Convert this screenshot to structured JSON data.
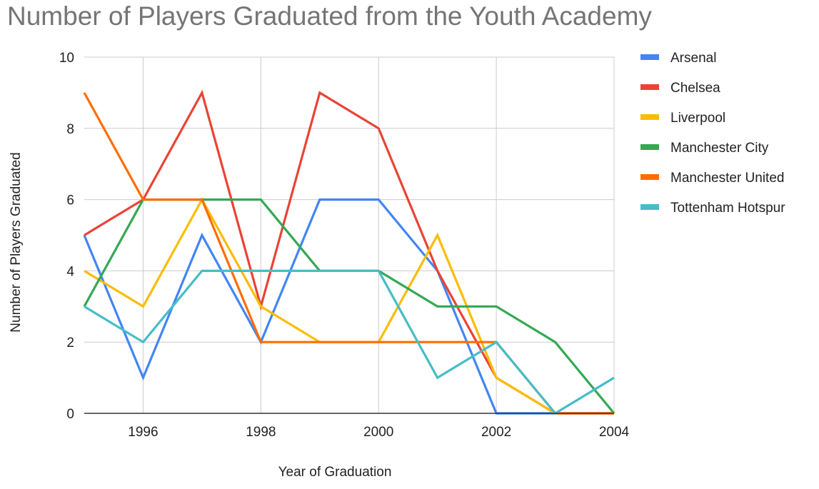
{
  "chart_data": {
    "type": "line",
    "title": "Number of Players Graduated from the Youth Academy",
    "xlabel": "Year of Graduation",
    "ylabel": "Number of Players Graduated",
    "x": [
      1995,
      1996,
      1997,
      1998,
      1999,
      2000,
      2001,
      2002,
      2003,
      2004
    ],
    "xlim": [
      1995,
      2004
    ],
    "ylim": [
      0,
      10
    ],
    "x_ticks": [
      1996,
      1998,
      2000,
      2002,
      2004
    ],
    "y_ticks": [
      0,
      2,
      4,
      6,
      8,
      10
    ],
    "grid": true,
    "legend_position": "right",
    "series": [
      {
        "name": "Arsenal",
        "color": "#4285F4",
        "values": [
          5,
          1,
          5,
          2,
          6,
          6,
          4,
          0,
          0,
          0
        ]
      },
      {
        "name": "Chelsea",
        "color": "#EA4335",
        "values": [
          5,
          6,
          9,
          3,
          9,
          8,
          4,
          1,
          0,
          0
        ]
      },
      {
        "name": "Liverpool",
        "color": "#FBBC04",
        "values": [
          4,
          3,
          6,
          3,
          2,
          2,
          5,
          1,
          0,
          0
        ]
      },
      {
        "name": "Manchester City",
        "color": "#34A853",
        "values": [
          3,
          6,
          6,
          6,
          4,
          4,
          3,
          3,
          2,
          0
        ]
      },
      {
        "name": "Manchester United",
        "color": "#FF6D01",
        "values": [
          9,
          6,
          6,
          2,
          2,
          2,
          2,
          2,
          0,
          0
        ]
      },
      {
        "name": "Tottenham Hotspur",
        "color": "#46BDC6",
        "values": [
          3,
          2,
          4,
          4,
          4,
          4,
          1,
          2,
          0,
          1
        ]
      }
    ]
  }
}
